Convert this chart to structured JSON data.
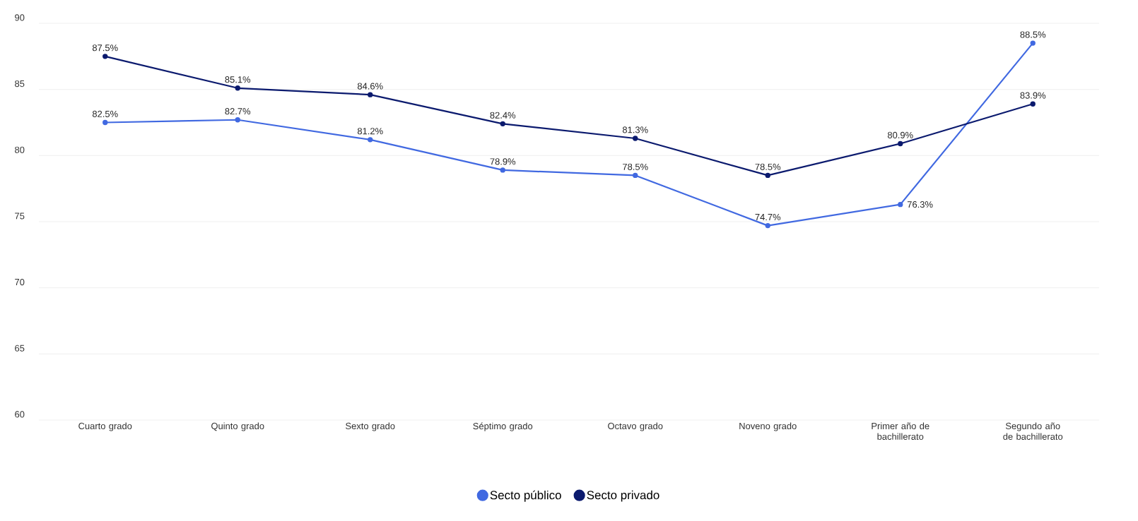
{
  "chart_data": {
    "type": "line",
    "categories": [
      "Cuarto grado",
      "Quinto grado",
      "Sexto grado",
      "Séptimo grado",
      "Octavo grado",
      "Noveno grado",
      "Primer año de bachillerato",
      "Segundo año de bachillerato"
    ],
    "series": [
      {
        "name": "Secto público",
        "color": "#4169e1",
        "values": [
          82.5,
          82.7,
          81.2,
          78.9,
          78.5,
          74.7,
          76.3,
          88.5
        ],
        "value_labels": [
          "82.5%",
          "82.7%",
          "81.2%",
          "78.9%",
          "78.5%",
          "74.7%",
          "76.3%",
          "88.5%"
        ]
      },
      {
        "name": "Secto privado",
        "color": "#0b1a6e",
        "values": [
          87.5,
          85.1,
          84.6,
          82.4,
          81.3,
          78.5,
          80.9,
          83.9
        ],
        "value_labels": [
          "87.5%",
          "85.1%",
          "84.6%",
          "82.4%",
          "81.3%",
          "78.5%",
          "80.9%",
          "83.9%"
        ]
      }
    ],
    "ylim": [
      60,
      90
    ],
    "yticks": [
      60,
      65,
      70,
      75,
      80,
      85,
      90
    ],
    "grid": "y",
    "legend": "bottom",
    "marker": "circle",
    "line_style": "solid"
  }
}
